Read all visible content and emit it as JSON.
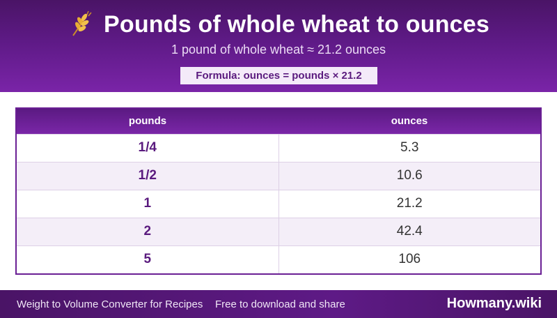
{
  "header": {
    "icon": "wheat-icon",
    "title": "Pounds of whole wheat to ounces",
    "subtitle": "1 pound of whole wheat ≈ 21.2 ounces",
    "formula": "Formula: ounces = pounds × 21.2"
  },
  "table": {
    "columns": [
      "pounds",
      "ounces"
    ],
    "rows": [
      {
        "pounds": "1/4",
        "ounces": "5.3"
      },
      {
        "pounds": "1/2",
        "ounces": "10.6"
      },
      {
        "pounds": "1",
        "ounces": "21.2"
      },
      {
        "pounds": "2",
        "ounces": "42.4"
      },
      {
        "pounds": "5",
        "ounces": "106"
      }
    ]
  },
  "footer": {
    "left_text": "Weight to Volume Converter for Recipes",
    "mid_text": "Free to download and share",
    "brand": "Howmany.wiki"
  },
  "colors": {
    "primary": "#5e1a86",
    "accent_light": "#f4eaf9",
    "row_alt": "#f4eef8"
  }
}
